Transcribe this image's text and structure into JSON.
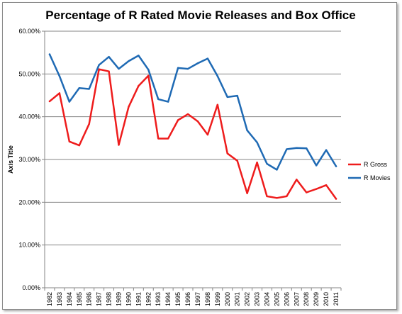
{
  "chart_data": {
    "type": "line",
    "title": "Percentage of R Rated Movie Releases and Box Office",
    "ylabel": "Axis Title",
    "xlabel": "",
    "ylim": [
      0,
      0.6
    ],
    "y_ticks": [
      "0.00%",
      "10.00%",
      "20.00%",
      "30.00%",
      "40.00%",
      "50.00%",
      "60.00%"
    ],
    "grid": "horizontal",
    "legend_position": "right",
    "categories": [
      "1982",
      "1983",
      "1984",
      "1985",
      "1986",
      "1987",
      "1988",
      "1989",
      "1990",
      "1991",
      "1992",
      "1993",
      "1994",
      "1995",
      "1996",
      "1997",
      "1998",
      "1999",
      "2000",
      "2001",
      "2002",
      "2003",
      "2004",
      "2005",
      "2006",
      "2007",
      "2008",
      "2009",
      "2010",
      "2011"
    ],
    "series": [
      {
        "name": "R Gross",
        "color": "#ee1c1c",
        "values": [
          0.436,
          0.455,
          0.342,
          0.333,
          0.383,
          0.511,
          0.506,
          0.334,
          0.423,
          0.472,
          0.496,
          0.349,
          0.349,
          0.392,
          0.406,
          0.389,
          0.358,
          0.428,
          0.314,
          0.297,
          0.221,
          0.293,
          0.214,
          0.21,
          0.214,
          0.253,
          0.223,
          0.231,
          0.24,
          0.208
        ]
      },
      {
        "name": "R Movies",
        "color": "#1f6ab4",
        "values": [
          0.546,
          0.495,
          0.435,
          0.467,
          0.465,
          0.521,
          0.54,
          0.512,
          0.53,
          0.543,
          0.51,
          0.441,
          0.435,
          0.514,
          0.512,
          0.525,
          0.536,
          0.495,
          0.446,
          0.449,
          0.368,
          0.34,
          0.29,
          0.276,
          0.324,
          0.327,
          0.326,
          0.286,
          0.322,
          0.284
        ]
      }
    ]
  }
}
